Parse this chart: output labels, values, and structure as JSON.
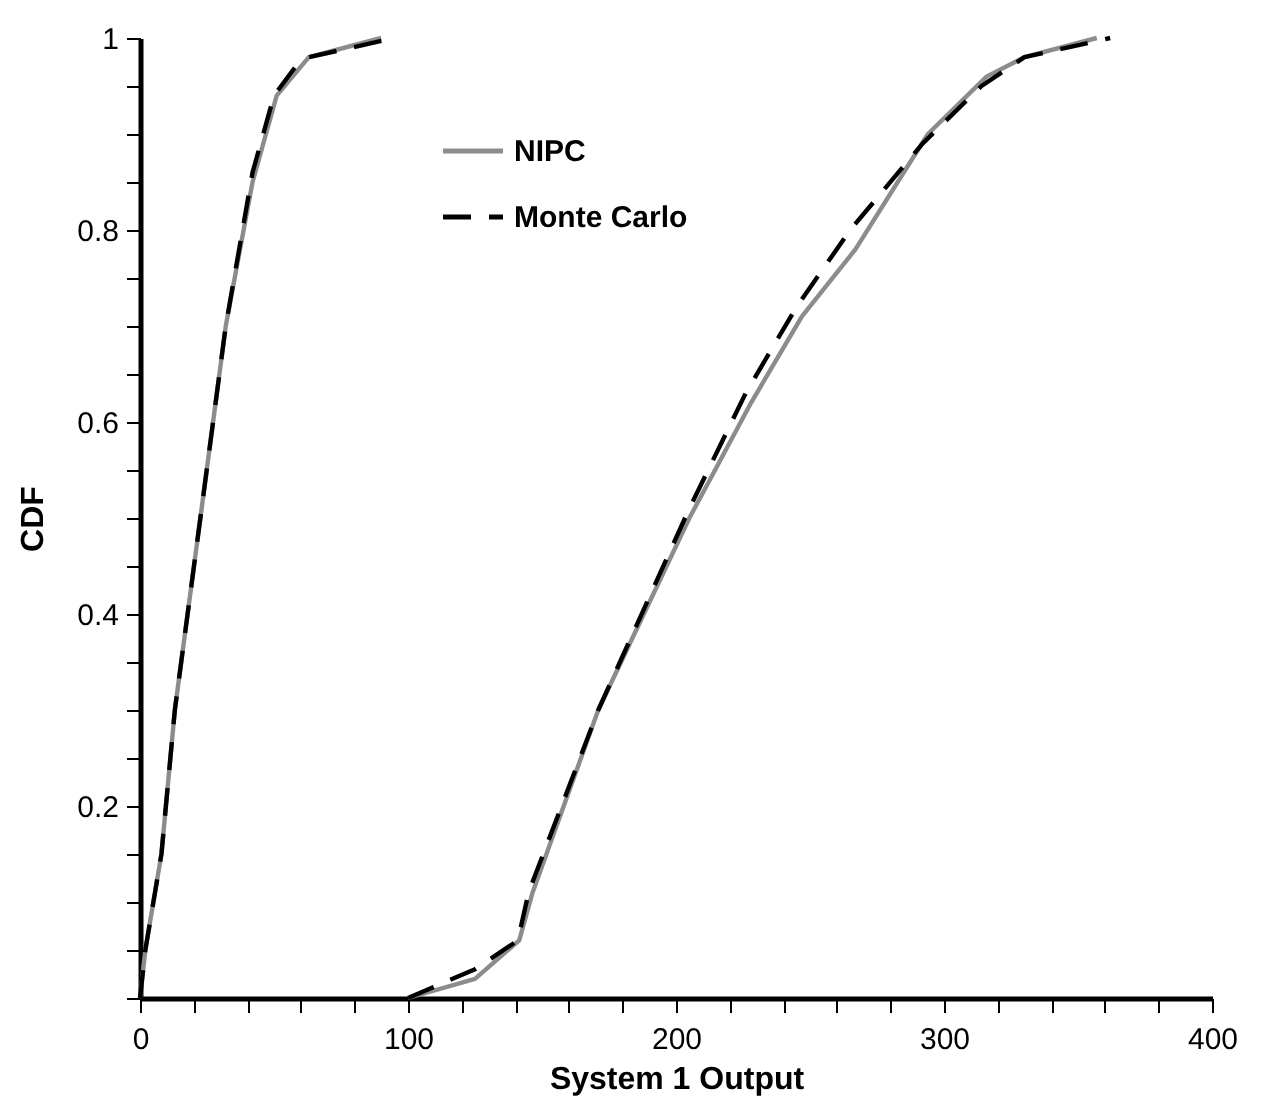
{
  "chart_data": {
    "type": "line",
    "xlabel": "System 1 Output",
    "ylabel": "CDF",
    "xlim": [
      0,
      400
    ],
    "ylim": [
      0,
      1
    ],
    "xticks": [
      0,
      {
        "value": 20,
        "label": null
      },
      {
        "value": 40,
        "label": null
      },
      {
        "value": 60,
        "label": null
      },
      {
        "value": 80,
        "label": null
      },
      100,
      {
        "value": 120,
        "label": null
      },
      {
        "value": 140,
        "label": null
      },
      {
        "value": 160,
        "label": null
      },
      {
        "value": 180,
        "label": null
      },
      200,
      {
        "value": 220,
        "label": null
      },
      {
        "value": 240,
        "label": null
      },
      {
        "value": 260,
        "label": null
      },
      {
        "value": 280,
        "label": null
      },
      300,
      {
        "value": 320,
        "label": null
      },
      {
        "value": 340,
        "label": null
      },
      {
        "value": 360,
        "label": null
      },
      {
        "value": 380,
        "label": null
      },
      400
    ],
    "yticks": [
      {
        "value": 0,
        "label": null
      },
      {
        "value": 0.05,
        "label": null
      },
      {
        "value": 0.1,
        "label": null
      },
      {
        "value": 0.15,
        "label": null
      },
      0.2,
      {
        "value": 0.25,
        "label": null
      },
      {
        "value": 0.3,
        "label": null
      },
      {
        "value": 0.35,
        "label": null
      },
      0.4,
      {
        "value": 0.45,
        "label": null
      },
      {
        "value": 0.5,
        "label": null
      },
      {
        "value": 0.55,
        "label": null
      },
      0.6,
      {
        "value": 0.65,
        "label": null
      },
      {
        "value": 0.7,
        "label": null
      },
      {
        "value": 0.75,
        "label": null
      },
      0.8,
      {
        "value": 0.85,
        "label": null
      },
      {
        "value": 0.9,
        "label": null
      },
      {
        "value": 0.95,
        "label": null
      },
      1
    ],
    "grid": false,
    "legend": "top",
    "marker": "none",
    "series": [
      {
        "name": "NIPC",
        "color": "#8c8c8c",
        "line_style": "solid",
        "x": [
          0,
          2,
          8,
          13,
          23,
          32,
          42,
          51,
          63,
          90,
          null,
          100,
          125,
          141.5,
          146.5,
          171,
          205,
          228,
          247,
          267,
          294,
          316,
          330,
          357
        ],
        "values": [
          0,
          0.05,
          0.15,
          0.3,
          0.51,
          0.7,
          0.85,
          0.94,
          0.98,
          1,
          null,
          0,
          0.02,
          0.06,
          0.11,
          0.3,
          0.5,
          0.62,
          0.71,
          0.78,
          0.9,
          0.96,
          0.98,
          1
        ]
      },
      {
        "name": "Monte Carlo",
        "color": "#000000",
        "line_style": "dashed",
        "x": [
          0,
          2,
          8,
          13,
          23,
          32,
          42,
          50,
          58,
          63,
          95,
          null,
          100,
          125,
          141,
          145,
          171,
          205,
          226,
          245,
          265,
          292,
          314,
          330,
          362
        ],
        "values": [
          0,
          0.05,
          0.15,
          0.3,
          0.51,
          0.7,
          0.86,
          0.94,
          0.97,
          0.98,
          1,
          null,
          0,
          0.03,
          0.06,
          0.11,
          0.3,
          0.51,
          0.63,
          0.72,
          0.8,
          0.89,
          0.95,
          0.98,
          1
        ]
      }
    ]
  }
}
